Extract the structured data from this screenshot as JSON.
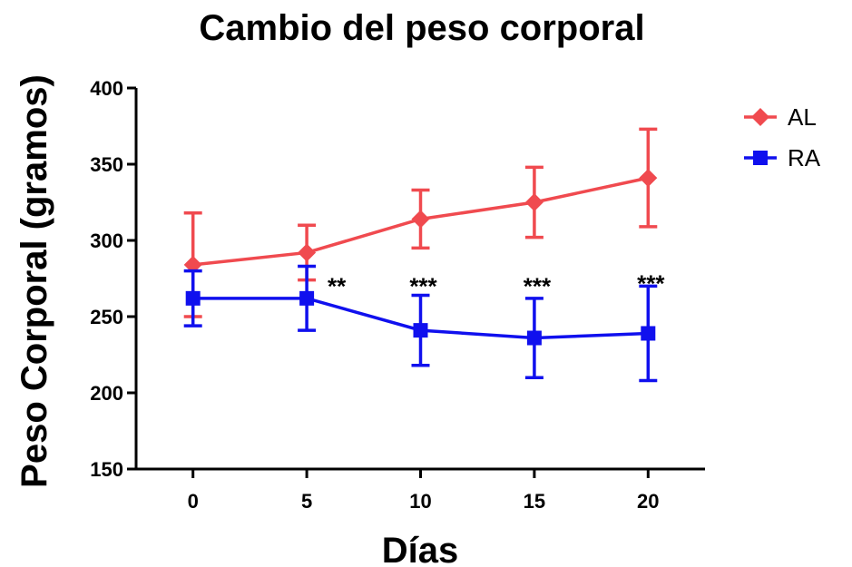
{
  "chart_data": {
    "type": "line",
    "title": "Cambio del peso corporal",
    "xlabel": "Días",
    "ylabel": "Peso Corporal (gramos)",
    "xlim": [
      -2.5,
      22.5
    ],
    "ylim": [
      150,
      400
    ],
    "xticks": [
      0,
      5,
      10,
      15,
      20
    ],
    "yticks": [
      150,
      200,
      250,
      300,
      350,
      400
    ],
    "x": [
      0,
      5,
      10,
      15,
      20
    ],
    "grid": false,
    "legend_position": "top-right",
    "series": [
      {
        "name": "AL",
        "color": "#f04a4f",
        "marker": "diamond",
        "values": [
          284,
          292,
          314,
          325,
          341
        ],
        "error": [
          34,
          18,
          19,
          23,
          32
        ]
      },
      {
        "name": "RA",
        "color": "#1010ee",
        "marker": "square",
        "values": [
          262,
          262,
          241,
          236,
          239
        ],
        "error": [
          18,
          21,
          23,
          26,
          31
        ]
      }
    ],
    "annotations": [
      {
        "x": 5,
        "text": "**",
        "y": 274
      },
      {
        "x": 10,
        "text": "***",
        "y": 274
      },
      {
        "x": 15,
        "text": "***",
        "y": 274
      },
      {
        "x": 20,
        "text": "***",
        "y": 276
      }
    ]
  }
}
